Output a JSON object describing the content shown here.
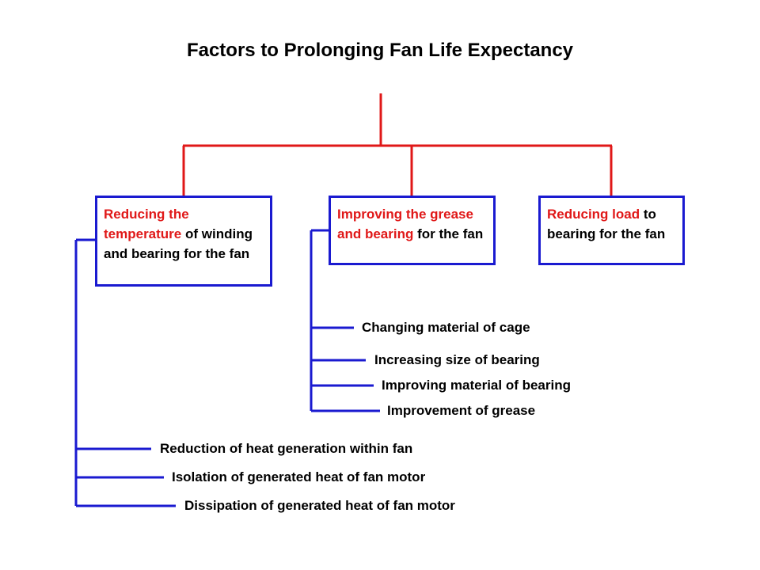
{
  "title": "Factors to Prolonging Fan Life Expectancy",
  "boxes": [
    {
      "highlight": "Reducing the temperature",
      "rest": "of winding and bearing for the fan",
      "items": [
        "Reduction of heat generation within fan",
        "Isolation of generated heat of fan motor",
        "Dissipation of generated heat of fan motor"
      ]
    },
    {
      "highlight": "Improving the grease and bearing",
      "rest": "for the fan",
      "items": [
        "Changing material of cage",
        "Increasing size of bearing",
        "Improving material of bearing",
        "Improvement of grease"
      ]
    },
    {
      "highlight": "Reducing load",
      "rest": "to bearing for the fan"
    }
  ]
}
